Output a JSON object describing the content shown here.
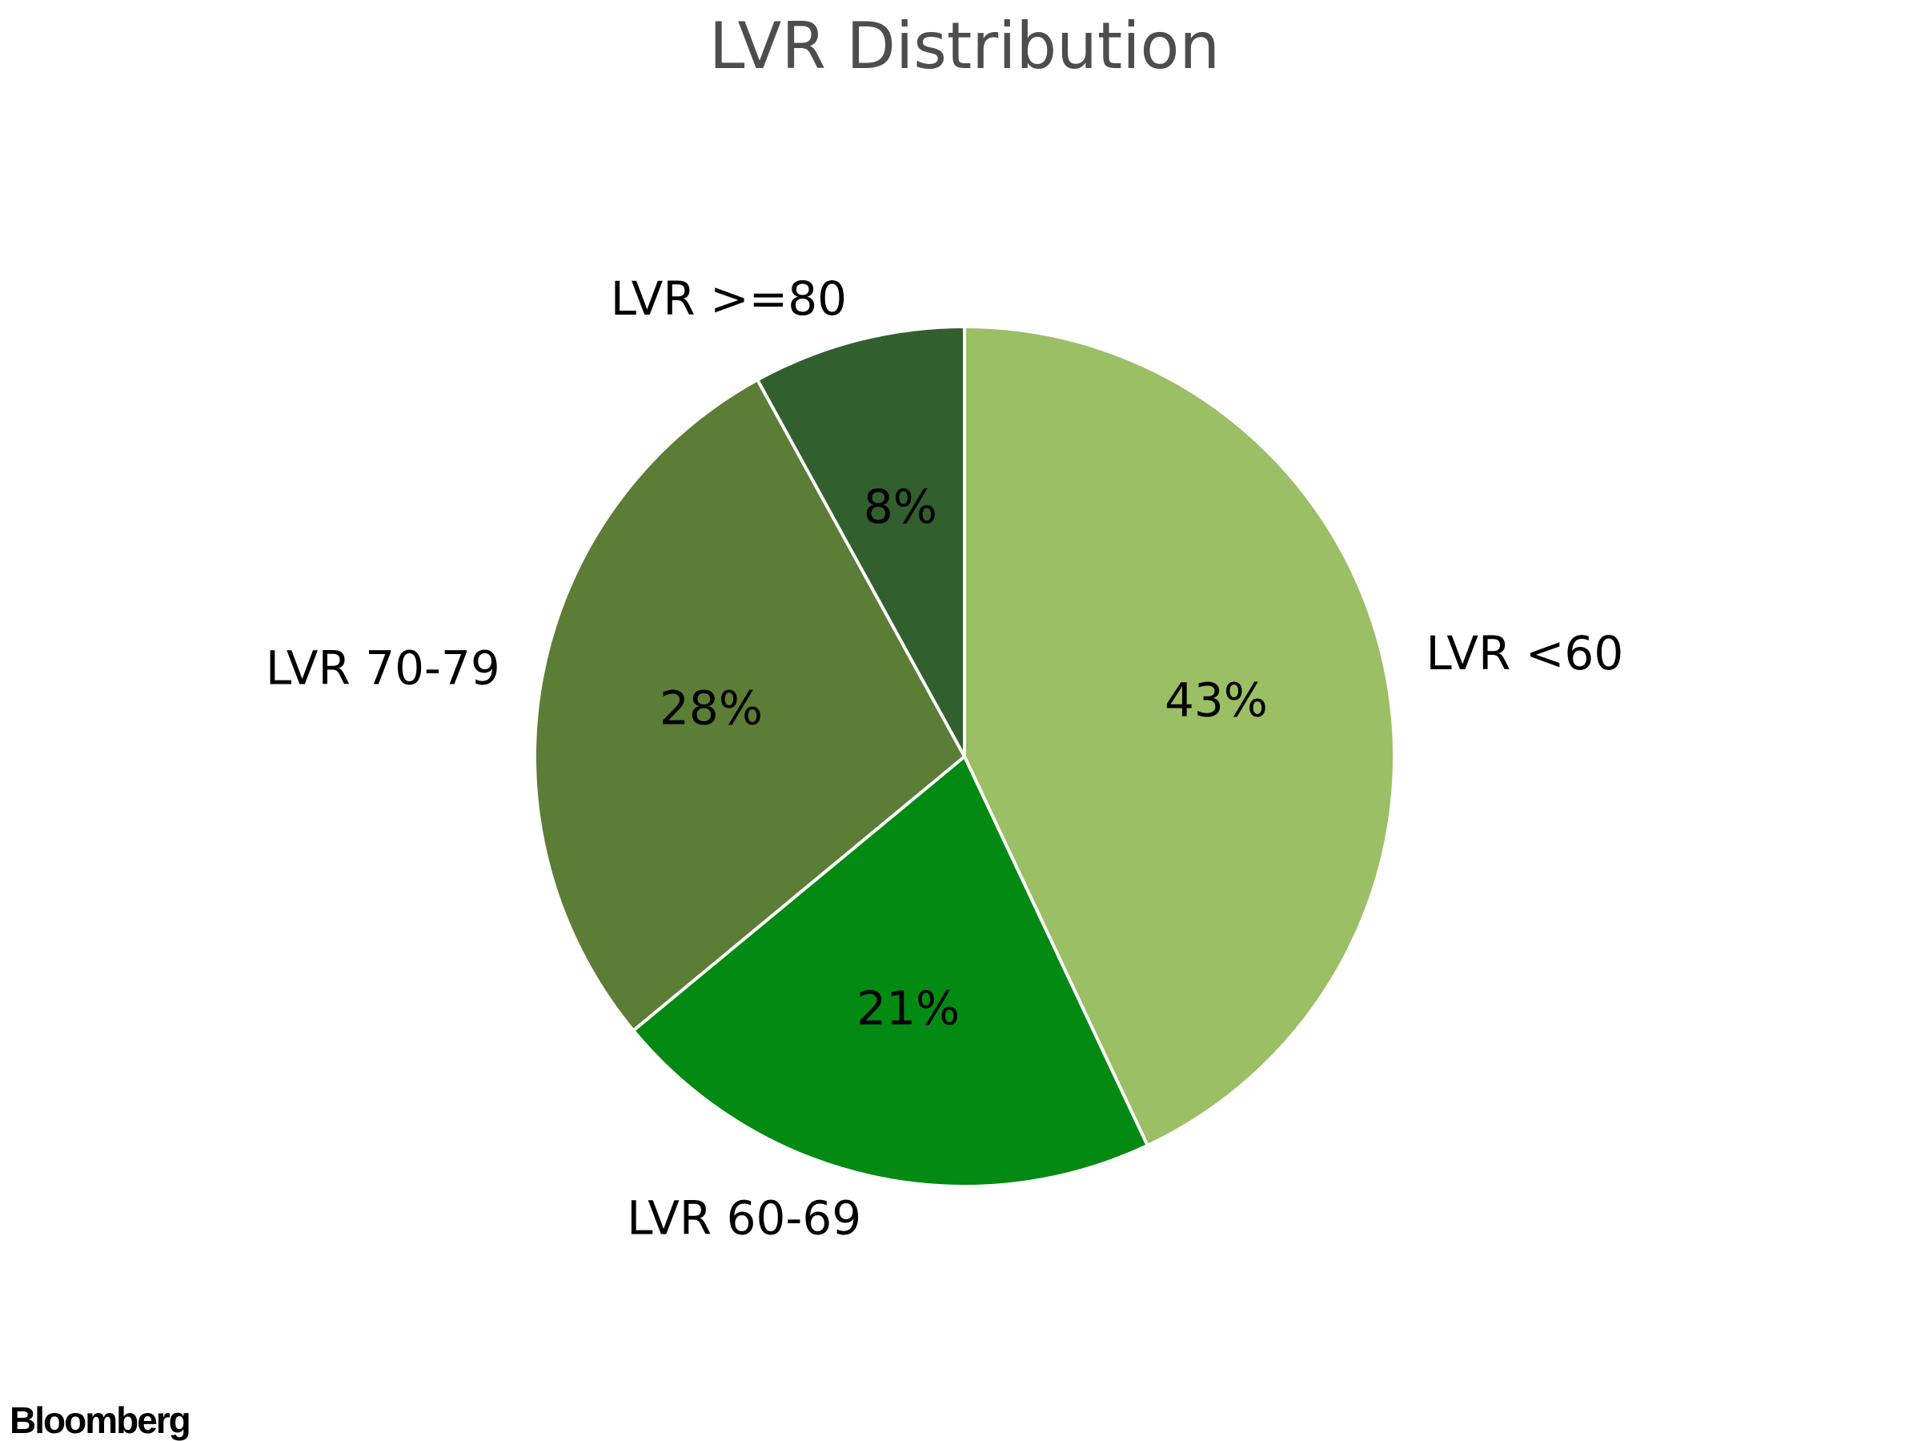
{
  "chart_data": {
    "type": "pie",
    "title": "LVR Distribution",
    "start_angle_deg": 90,
    "direction": "clockwise",
    "slices": [
      {
        "label": "LVR <60",
        "value": 43,
        "pct_label": "43%",
        "color": "#9bbf65"
      },
      {
        "label": "LVR 60-69",
        "value": 21,
        "pct_label": "21%",
        "color": "#028a12"
      },
      {
        "label": "LVR 70-79",
        "value": 28,
        "pct_label": "28%",
        "color": "#5b7d36"
      },
      {
        "label": "LVR >=80",
        "value": 8,
        "pct_label": "8%",
        "color": "#325f2e"
      }
    ]
  },
  "footer": {
    "brand": "Bloomberg"
  }
}
